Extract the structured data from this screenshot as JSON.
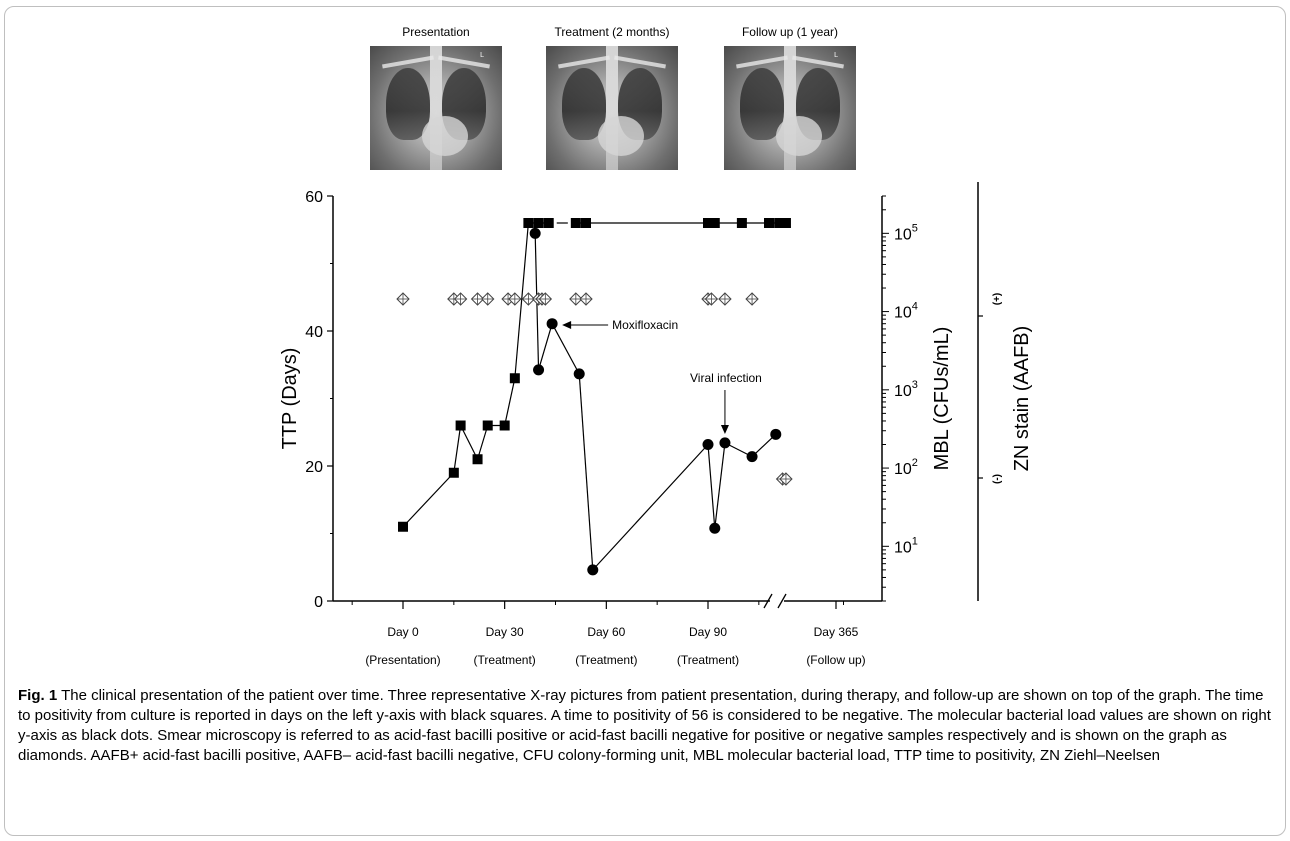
{
  "xrays": [
    {
      "title": "Presentation",
      "marker": "L"
    },
    {
      "title": "Treatment (2 months)",
      "marker": ""
    },
    {
      "title": "Follow up (1 year)",
      "marker": "L"
    }
  ],
  "chart_data": {
    "type": "scatter",
    "title": "",
    "left_axis": {
      "label": "TTP (Days)",
      "range": [
        0,
        60
      ],
      "ticks": [
        0,
        20,
        40,
        60
      ]
    },
    "right_axis": {
      "label": "MBL (CFUs/mL)",
      "scale": "log",
      "range": [
        2,
        300000
      ],
      "ticks": [
        10,
        100,
        1000,
        10000,
        100000
      ],
      "tick_labels": [
        "10^1",
        "10^2",
        "10^3",
        "10^4",
        "10^5"
      ]
    },
    "zn_axis": {
      "label": "ZN stain (AAFB)",
      "positive_label": "(+)",
      "negative_label": "(-)"
    },
    "x_axis": {
      "ticks": [
        {
          "day": 0,
          "label": "Day 0",
          "sublabel": "(Presentation)"
        },
        {
          "day": 30,
          "label": "Day 30",
          "sublabel": "(Treatment)"
        },
        {
          "day": 60,
          "label": "Day 60",
          "sublabel": "(Treatment)"
        },
        {
          "day": 90,
          "label": "Day 90",
          "sublabel": "(Treatment)"
        },
        {
          "day": 365,
          "label": "Day 365",
          "sublabel": "(Follow up)"
        }
      ],
      "break_between": [
        110,
        365
      ]
    },
    "series": [
      {
        "name": "TTP",
        "marker": "square",
        "points": [
          [
            0,
            11
          ],
          [
            15,
            19
          ],
          [
            17,
            26
          ],
          [
            22,
            21
          ],
          [
            25,
            26
          ],
          [
            30,
            26
          ],
          [
            33,
            33
          ],
          [
            37,
            56
          ],
          [
            40,
            56
          ],
          [
            43,
            56
          ],
          [
            51,
            56
          ],
          [
            54,
            56
          ],
          [
            90,
            56
          ],
          [
            92,
            56
          ],
          [
            100,
            56
          ],
          [
            108,
            56
          ],
          [
            111,
            56
          ],
          [
            113,
            56
          ]
        ],
        "gaps_after_x": [
          [
            43,
            51
          ],
          [
            54,
            90
          ]
        ]
      },
      {
        "name": "MBL",
        "marker": "circle",
        "points": [
          [
            39,
            100000
          ],
          [
            40,
            1800
          ],
          [
            44,
            7000
          ],
          [
            52,
            1600
          ],
          [
            56,
            5
          ],
          [
            90,
            200
          ],
          [
            92,
            17
          ],
          [
            95,
            210
          ],
          [
            103,
            140
          ],
          [
            110,
            270
          ]
        ]
      },
      {
        "name": "ZN stain",
        "marker": "diamond",
        "points": [
          [
            0,
            "+"
          ],
          [
            15,
            "+"
          ],
          [
            17,
            "+"
          ],
          [
            22,
            "+"
          ],
          [
            25,
            "+"
          ],
          [
            31,
            "+"
          ],
          [
            33,
            "+"
          ],
          [
            37,
            "+"
          ],
          [
            40,
            "+"
          ],
          [
            41,
            "+"
          ],
          [
            42,
            "+"
          ],
          [
            51,
            "+"
          ],
          [
            54,
            "+"
          ],
          [
            90,
            "+"
          ],
          [
            91,
            "+"
          ],
          [
            95,
            "+"
          ],
          [
            103,
            "+"
          ],
          [
            112,
            "-"
          ],
          [
            113,
            "-"
          ]
        ]
      }
    ],
    "annotations": [
      {
        "text": "Moxifloxacin",
        "target_day": 44
      },
      {
        "text": "Viral infection",
        "target_day": 95
      }
    ]
  },
  "caption": {
    "fig_label": "Fig. 1",
    "text": "The clinical presentation of the patient over time. Three representative X-ray pictures from patient presentation, during therapy, and follow-up are shown on top of the graph. The time to positivity from culture is reported in days on the left y-axis with black squares. A time to positivity of 56 is considered to be negative. The molecular bacterial load values are shown on right y-axis as black dots. Smear microscopy is referred to as acid-fast bacilli positive or acid-fast bacilli negative for positive or negative samples respectively and is shown on the graph as diamonds. AAFB+ acid-fast bacilli positive, AAFB– acid-fast bacilli negative, CFU colony-forming unit, MBL molecular bacterial load, TTP time to positivity, ZN Ziehl–Neelsen"
  }
}
